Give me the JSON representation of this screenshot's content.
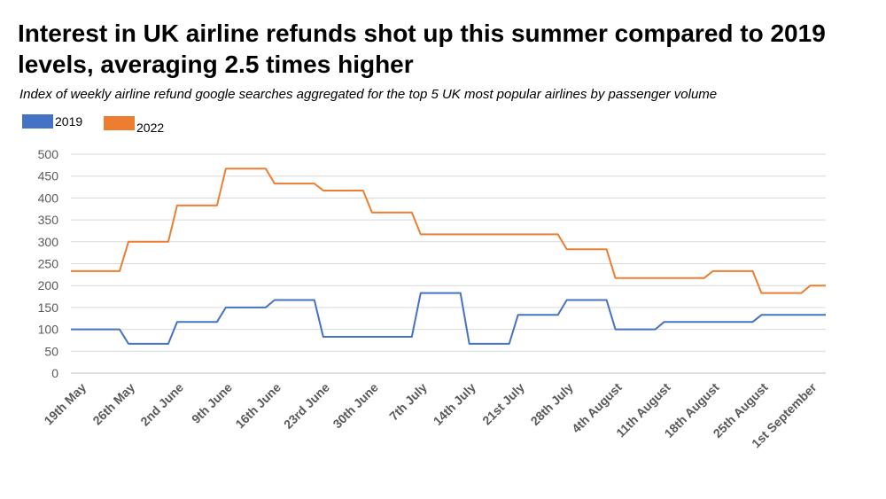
{
  "title": "Interest in UK airline refunds shot up this summer compared to 2019 levels, averaging 2.5 times higher",
  "subtitle": "Index of weekly airline refund google searches aggregated for the top 5 UK most popular airlines by passenger volume",
  "chart_data": {
    "type": "line",
    "title": "Interest in UK airline refunds shot up this summer compared to 2019 levels, averaging 2.5 times higher",
    "subtitle": "Index of weekly airline refund google searches aggregated for the top 5 UK most popular airlines by passenger volume",
    "xlabel": "",
    "ylabel": "",
    "ylim": [
      0,
      500
    ],
    "yticks": [
      0,
      50,
      100,
      150,
      200,
      250,
      300,
      350,
      400,
      450,
      500
    ],
    "grid": true,
    "legend_position": "top-left",
    "x": [
      "19th May",
      "26th May",
      "2nd June",
      "9th June",
      "16th June",
      "23rd June",
      "30th June",
      "7th July",
      "14th July",
      "21st July",
      "28th July",
      "4th August",
      "11th August",
      "18th August",
      "25th August",
      "1st September"
    ],
    "series": [
      {
        "name": "2019",
        "color": "#4472c4",
        "values": [
          100,
          67,
          117,
          150,
          167,
          83,
          83,
          183,
          67,
          133,
          167,
          100,
          117,
          117,
          133,
          133
        ]
      },
      {
        "name": "2022",
        "color": "#ed7d31",
        "values": [
          233,
          300,
          383,
          467,
          433,
          417,
          367,
          317,
          317,
          317,
          283,
          217,
          217,
          233,
          183,
          200
        ]
      }
    ]
  }
}
